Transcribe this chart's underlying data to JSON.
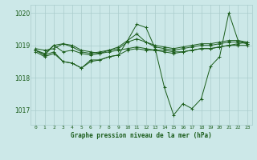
{
  "title": "Graphe pression niveau de la mer (hPa)",
  "background_color": "#cce8e8",
  "grid_color": "#aacccc",
  "line_color": "#1a5c1a",
  "marker_color": "#1a5c1a",
  "xlim": [
    -0.5,
    23.5
  ],
  "ylim": [
    1016.55,
    1020.25
  ],
  "yticks": [
    1017,
    1018,
    1019,
    1020
  ],
  "xtick_labels": [
    "0",
    "1",
    "2",
    "3",
    "4",
    "5",
    "6",
    "7",
    "8",
    "9",
    "10",
    "11",
    "12",
    "13",
    "14",
    "15",
    "16",
    "17",
    "18",
    "19",
    "20",
    "21",
    "22",
    "23"
  ],
  "series": [
    [
      1018.85,
      1018.7,
      1019.0,
      1018.8,
      1018.85,
      1018.75,
      1018.7,
      1018.75,
      1018.8,
      1018.85,
      1018.9,
      1018.95,
      1018.9,
      1018.85,
      1018.85,
      1018.8,
      1018.8,
      1018.85,
      1018.9,
      1018.9,
      1018.95,
      1019.0,
      1019.05,
      1019.1
    ],
    [
      1018.9,
      1018.85,
      1018.9,
      1019.05,
      1019.0,
      1018.85,
      1018.8,
      1018.75,
      1018.85,
      1018.9,
      1019.1,
      1019.2,
      1019.1,
      1019.0,
      1018.95,
      1018.9,
      1018.95,
      1019.0,
      1019.05,
      1019.05,
      1019.1,
      1019.15,
      1019.15,
      1019.1
    ],
    [
      1018.85,
      1018.75,
      1019.0,
      1019.05,
      1018.95,
      1018.8,
      1018.75,
      1018.8,
      1018.85,
      1018.95,
      1019.15,
      1019.35,
      1019.1,
      1018.95,
      1018.9,
      1018.85,
      1018.9,
      1018.95,
      1019.0,
      1019.0,
      1019.05,
      1019.1,
      1019.1,
      1019.05
    ],
    [
      1018.8,
      1018.65,
      1018.75,
      1018.5,
      1018.45,
      1018.3,
      1018.5,
      1018.55,
      1018.65,
      1018.7,
      1018.85,
      1018.9,
      1018.85,
      1018.85,
      1018.8,
      1018.75,
      1018.8,
      1018.85,
      1018.9,
      1018.9,
      1018.95,
      1019.0,
      1019.0,
      1019.0
    ],
    [
      1018.85,
      1018.7,
      1018.8,
      1018.5,
      1018.45,
      1018.3,
      1018.55,
      1018.55,
      1018.65,
      1018.7,
      1019.15,
      1019.65,
      1019.55,
      1018.9,
      1017.7,
      1016.85,
      1017.2,
      1017.05,
      1017.35,
      1018.35,
      1018.65,
      1020.0,
      1019.15,
      1019.05
    ]
  ]
}
